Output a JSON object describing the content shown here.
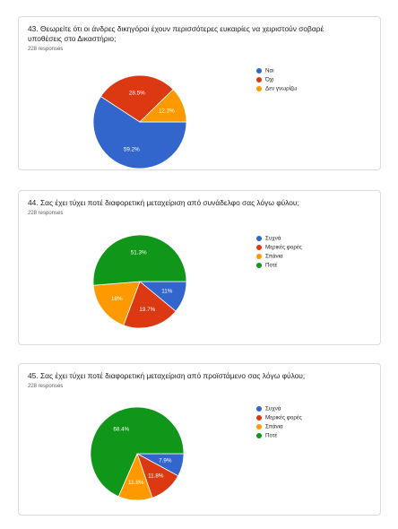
{
  "chart_data": [
    {
      "type": "pie",
      "title": "43. Θεωρείτε ότι οι άνδρες δικηγόροι έχουν περισσότερες ευκαιρίες να χειριστούν σοβαρέ υποθέσεις στο Δικαστήριο;",
      "subtitle": "228 responses",
      "categories": [
        "Ναι",
        "Όχι",
        "Δεν γνωρίζω"
      ],
      "values": [
        59.2,
        28.5,
        12.3
      ],
      "value_labels": [
        "59.2%",
        "28.5%",
        "12.3%"
      ],
      "colors": [
        "#3366cc",
        "#dc3912",
        "#ff9900"
      ]
    },
    {
      "type": "pie",
      "title": "44. Σας έχει τύχει ποτέ διαφορετική μεταχείριση από συνάδελφο σας λόγω φύλου;",
      "subtitle": "228 responses",
      "categories": [
        "Συχνά",
        "Μερικές φορές",
        "Σπάνια",
        "Ποτέ"
      ],
      "values": [
        11,
        19.7,
        18,
        51.3
      ],
      "value_labels": [
        "11%",
        "19.7%",
        "18%",
        "51.3%"
      ],
      "colors": [
        "#3366cc",
        "#dc3912",
        "#ff9900",
        "#109618"
      ]
    },
    {
      "type": "pie",
      "title": "45. Σας έχει τύχει ποτέ διαφορετική μεταχείριση από προϊστάμενο σας λόγω φύλου;",
      "subtitle": "228 responses",
      "categories": [
        "Συχνά",
        "Μερικές φορές",
        "Σπάνια",
        "Ποτέ"
      ],
      "values": [
        7.9,
        11.8,
        11.8,
        68.4
      ],
      "value_labels": [
        "7.9%",
        "11.8%",
        "11.8%",
        "68.4%"
      ],
      "colors": [
        "#3366cc",
        "#dc3912",
        "#ff9900",
        "#109618"
      ]
    }
  ]
}
